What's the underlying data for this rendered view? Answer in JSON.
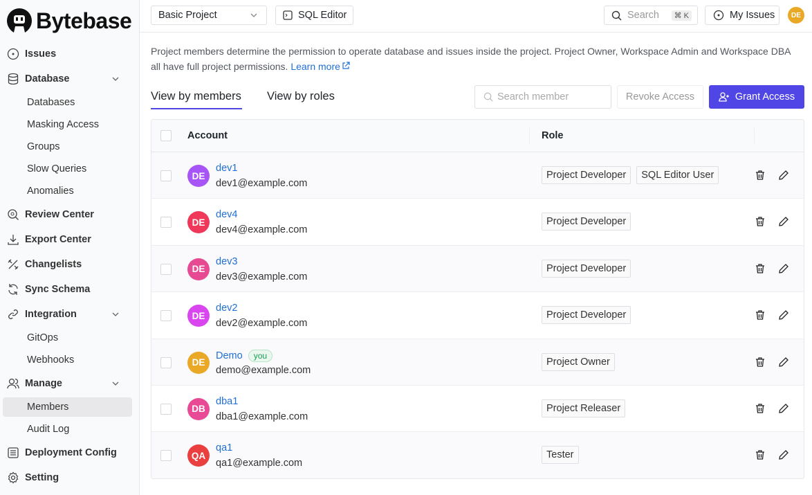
{
  "brand": {
    "name": "Bytebase"
  },
  "sidebar": {
    "items": [
      {
        "label": "Issues",
        "icon": "circle-dot-icon"
      },
      {
        "label": "Database",
        "icon": "database-icon"
      },
      {
        "label": "Databases"
      },
      {
        "label": "Masking Access"
      },
      {
        "label": "Groups"
      },
      {
        "label": "Slow Queries"
      },
      {
        "label": "Anomalies"
      },
      {
        "label": "Review Center",
        "icon": "search-review-icon"
      },
      {
        "label": "Export Center",
        "icon": "download-icon"
      },
      {
        "label": "Changelists",
        "icon": "tools-icon"
      },
      {
        "label": "Sync Schema",
        "icon": "refresh-icon"
      },
      {
        "label": "Integration",
        "icon": "link-icon"
      },
      {
        "label": "GitOps"
      },
      {
        "label": "Webhooks"
      },
      {
        "label": "Manage",
        "icon": "users-icon"
      },
      {
        "label": "Members"
      },
      {
        "label": "Audit Log"
      },
      {
        "label": "Deployment Config",
        "icon": "list-icon"
      },
      {
        "label": "Setting",
        "icon": "gear-icon"
      }
    ],
    "selected": "Members"
  },
  "header": {
    "project": "Basic Project",
    "sql_editor": "SQL Editor",
    "search": "Search",
    "shortcut": "⌘ K",
    "my_issues": "My Issues",
    "avatar": "DE",
    "avatar_color": "#e9a825"
  },
  "main": {
    "description": "Project members determine the permission to operate database and issues inside the project. Project Owner, Workspace Admin and Workspace DBA all have full project permissions.",
    "learn_more": "Learn more",
    "tabs": [
      {
        "label": "View by members",
        "active": true
      },
      {
        "label": "View by roles"
      }
    ],
    "search_placeholder": "Search member",
    "revoke": "Revoke Access",
    "grant": "Grant Access",
    "accent": "#4f46e5",
    "columns": [
      "Account",
      "Role"
    ],
    "members": [
      {
        "initials": "DE",
        "color": "#a855f7",
        "name": "dev1",
        "email": "dev1@example.com",
        "roles": [
          "Project Developer",
          "SQL Editor User"
        ]
      },
      {
        "initials": "DE",
        "color": "#f0395a",
        "name": "dev4",
        "email": "dev4@example.com",
        "roles": [
          "Project Developer"
        ]
      },
      {
        "initials": "DE",
        "color": "#e64a93",
        "name": "dev3",
        "email": "dev3@example.com",
        "roles": [
          "Project Developer"
        ]
      },
      {
        "initials": "DE",
        "color": "#d946ef",
        "name": "dev2",
        "email": "dev2@example.com",
        "roles": [
          "Project Developer"
        ]
      },
      {
        "initials": "DE",
        "color": "#e9a825",
        "name": "Demo",
        "you": "you",
        "email": "demo@example.com",
        "roles": [
          "Project Owner"
        ]
      },
      {
        "initials": "DB",
        "color": "#e84a95",
        "name": "dba1",
        "email": "dba1@example.com",
        "roles": [
          "Project Releaser"
        ]
      },
      {
        "initials": "QA",
        "color": "#ea3f3f",
        "name": "qa1",
        "email": "qa1@example.com",
        "roles": [
          "Tester"
        ]
      }
    ]
  }
}
